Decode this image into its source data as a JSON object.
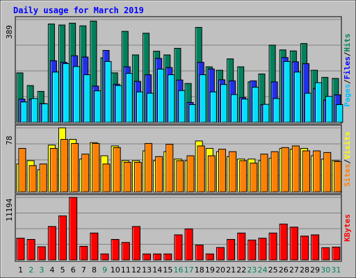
{
  "chart_data": [
    {
      "type": "bar",
      "title": "Daily usage for March 2019",
      "categories": [
        "1",
        "2",
        "3",
        "4",
        "5",
        "6",
        "7",
        "8",
        "9",
        "10",
        "11",
        "12",
        "13",
        "14",
        "15",
        "16",
        "17",
        "18",
        "19",
        "20",
        "21",
        "22",
        "23",
        "24",
        "25",
        "26",
        "27",
        "28",
        "29",
        "30",
        "31"
      ],
      "weekend_days": [
        "2",
        "3",
        "9",
        "16",
        "17",
        "23",
        "24",
        "30",
        "31"
      ],
      "ymax_label": "389",
      "ymax": 389,
      "right_axis_labels": [
        {
          "text": "Hits",
          "color": "#00805c"
        },
        {
          "text": "Files",
          "color": "#0000ff"
        },
        {
          "text": "Pages",
          "color": "#00c0ff"
        }
      ],
      "series": [
        {
          "name": "Hits",
          "color": "#00805c",
          "values": [
            187,
            139,
            117,
            372,
            368,
            375,
            365,
            383,
            244,
            187,
            344,
            255,
            337,
            269,
            255,
            280,
            147,
            359,
            210,
            197,
            240,
            210,
            153,
            183,
            292,
            274,
            270,
            298,
            197,
            170,
            166
          ]
        },
        {
          "name": "Files",
          "color": "#2030e8",
          "values": [
            88,
            87,
            71,
            233,
            227,
            252,
            247,
            137,
            272,
            144,
            210,
            155,
            180,
            242,
            207,
            160,
            75,
            227,
            202,
            161,
            157,
            94,
            157,
            67,
            153,
            245,
            229,
            222,
            128,
            84,
            104
          ]
        },
        {
          "name": "Pages",
          "color": "#00e0ff",
          "values": [
            77,
            90,
            70,
            190,
            222,
            211,
            180,
            119,
            230,
            139,
            185,
            115,
            110,
            201,
            180,
            120,
            67,
            180,
            115,
            143,
            105,
            88,
            133,
            68,
            90,
            230,
            190,
            110,
            150,
            98,
            67
          ]
        }
      ]
    },
    {
      "type": "bar",
      "ymax_label": "78",
      "ymax": 78,
      "right_axis_labels": [
        {
          "text": "Visits",
          "color": "#ffff00"
        },
        {
          "text": "Sites",
          "color": "#ff8000"
        }
      ],
      "series": [
        {
          "name": "Visits",
          "color": "#ffff00",
          "values": [
            34,
            38,
            27,
            57,
            78,
            64,
            40,
            60,
            44,
            56,
            38,
            38,
            50,
            38,
            49,
            40,
            38,
            62,
            53,
            49,
            43,
            40,
            40,
            38,
            41,
            53,
            52,
            53,
            44,
            40,
            38
          ]
        },
        {
          "name": "Sites",
          "color": "#ff8000",
          "values": [
            53,
            32,
            34,
            53,
            64,
            59,
            46,
            59,
            34,
            54,
            36,
            36,
            59,
            43,
            58,
            38,
            44,
            56,
            44,
            52,
            49,
            38,
            35,
            46,
            49,
            54,
            56,
            50,
            50,
            48,
            37
          ]
        }
      ]
    },
    {
      "type": "bar",
      "ymax_label": "11194",
      "ymax": 11194,
      "right_axis_labels": [
        {
          "text": "KBytes",
          "color": "#ff0000"
        }
      ],
      "series": [
        {
          "name": "KBytes",
          "color": "#ff0000",
          "values": [
            3890,
            3672,
            2363,
            5986,
            7881,
            11194,
            2440,
            4816,
            1075,
            3672,
            3129,
            5986,
            1075,
            1075,
            1075,
            4488,
            5548,
            2659,
            1075,
            2224,
            3672,
            4816,
            3562,
            3891,
            4816,
            6426,
            5877,
            4270,
            4488,
            2187,
            2297
          ]
        }
      ]
    }
  ],
  "colors": {
    "background": "#c0c0c0",
    "title": "#0000ff",
    "weekday_label": "#000000",
    "weekend_label": "#00805c"
  }
}
